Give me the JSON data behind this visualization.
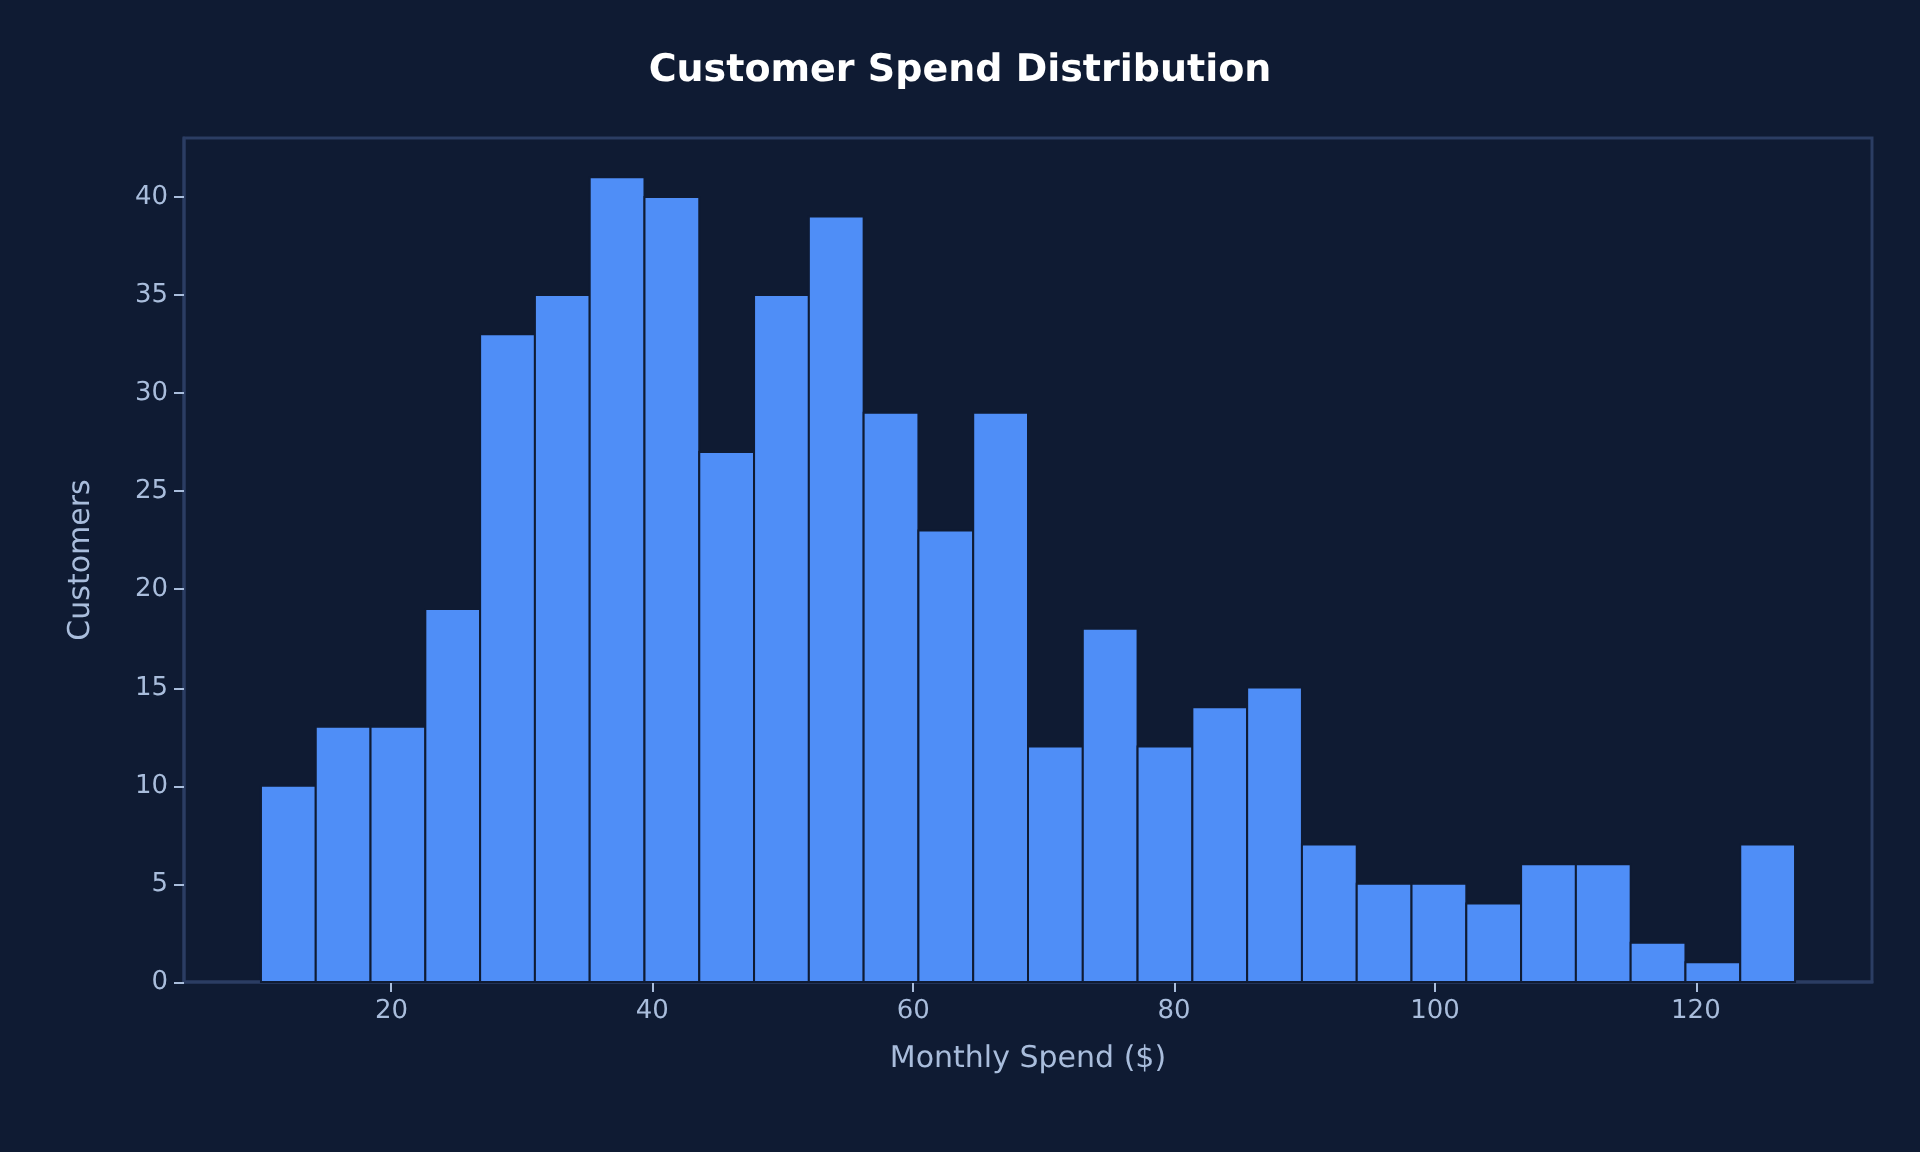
{
  "chart_data": {
    "type": "histogram",
    "title": "Customer Spend Distribution",
    "xlabel": "Monthly Spend ($)",
    "ylabel": "Customers",
    "bins": [
      10,
      14.2,
      18.4,
      22.6,
      26.8,
      31,
      35.2,
      39.4,
      43.6,
      47.8,
      52,
      56.2,
      60.4,
      64.6,
      68.8,
      73,
      77.2,
      81.4,
      85.6,
      89.8,
      94,
      98.2,
      102.4,
      106.6,
      110.8,
      115,
      119.2,
      123.4,
      127.6
    ],
    "values": [
      10,
      13,
      13,
      19,
      33,
      35,
      41,
      40,
      27,
      35,
      39,
      29,
      23,
      29,
      12,
      18,
      12,
      14,
      15,
      7,
      5,
      5,
      4,
      6,
      6,
      2,
      1,
      7
    ],
    "color": "#4f8ef7",
    "xlim": [
      4.1,
      133.5
    ],
    "xticks": [
      20,
      40,
      60,
      80,
      100,
      120
    ],
    "ylim": [
      0,
      43
    ],
    "yticks": [
      0,
      5,
      10,
      15,
      20,
      25,
      30,
      35,
      40
    ],
    "grid": false
  }
}
